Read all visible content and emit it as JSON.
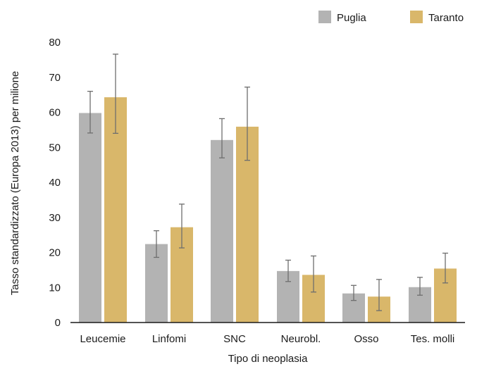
{
  "chart_data": {
    "type": "bar",
    "xlabel": "Tipo di neoplasia",
    "ylabel": "Tasso standardizzato (Europa 2013) per milione",
    "ylim": [
      0,
      80
    ],
    "yticks": [
      0,
      10,
      20,
      30,
      40,
      50,
      60,
      70,
      80
    ],
    "grid": false,
    "legend_position": "top-right",
    "categories": [
      "Leucemie",
      "Linfomi",
      "SNC",
      "Neurobl.",
      "Osso",
      "Tes. molli"
    ],
    "series": [
      {
        "name": "Puglia",
        "color": "#b3b3b3",
        "values": [
          59.8,
          22.4,
          52.1,
          14.7,
          8.3,
          10.1
        ],
        "error_low": [
          54.1,
          18.6,
          47.0,
          11.7,
          6.3,
          7.8
        ],
        "error_high": [
          66.0,
          26.2,
          58.2,
          17.8,
          10.6,
          12.9
        ]
      },
      {
        "name": "Taranto",
        "color": "#d9b76a",
        "values": [
          64.3,
          27.2,
          55.9,
          13.6,
          7.4,
          15.4
        ],
        "error_low": [
          54.0,
          21.3,
          46.3,
          8.7,
          3.4,
          11.3
        ],
        "error_high": [
          76.6,
          33.8,
          67.2,
          19.0,
          12.3,
          19.8
        ]
      }
    ]
  }
}
